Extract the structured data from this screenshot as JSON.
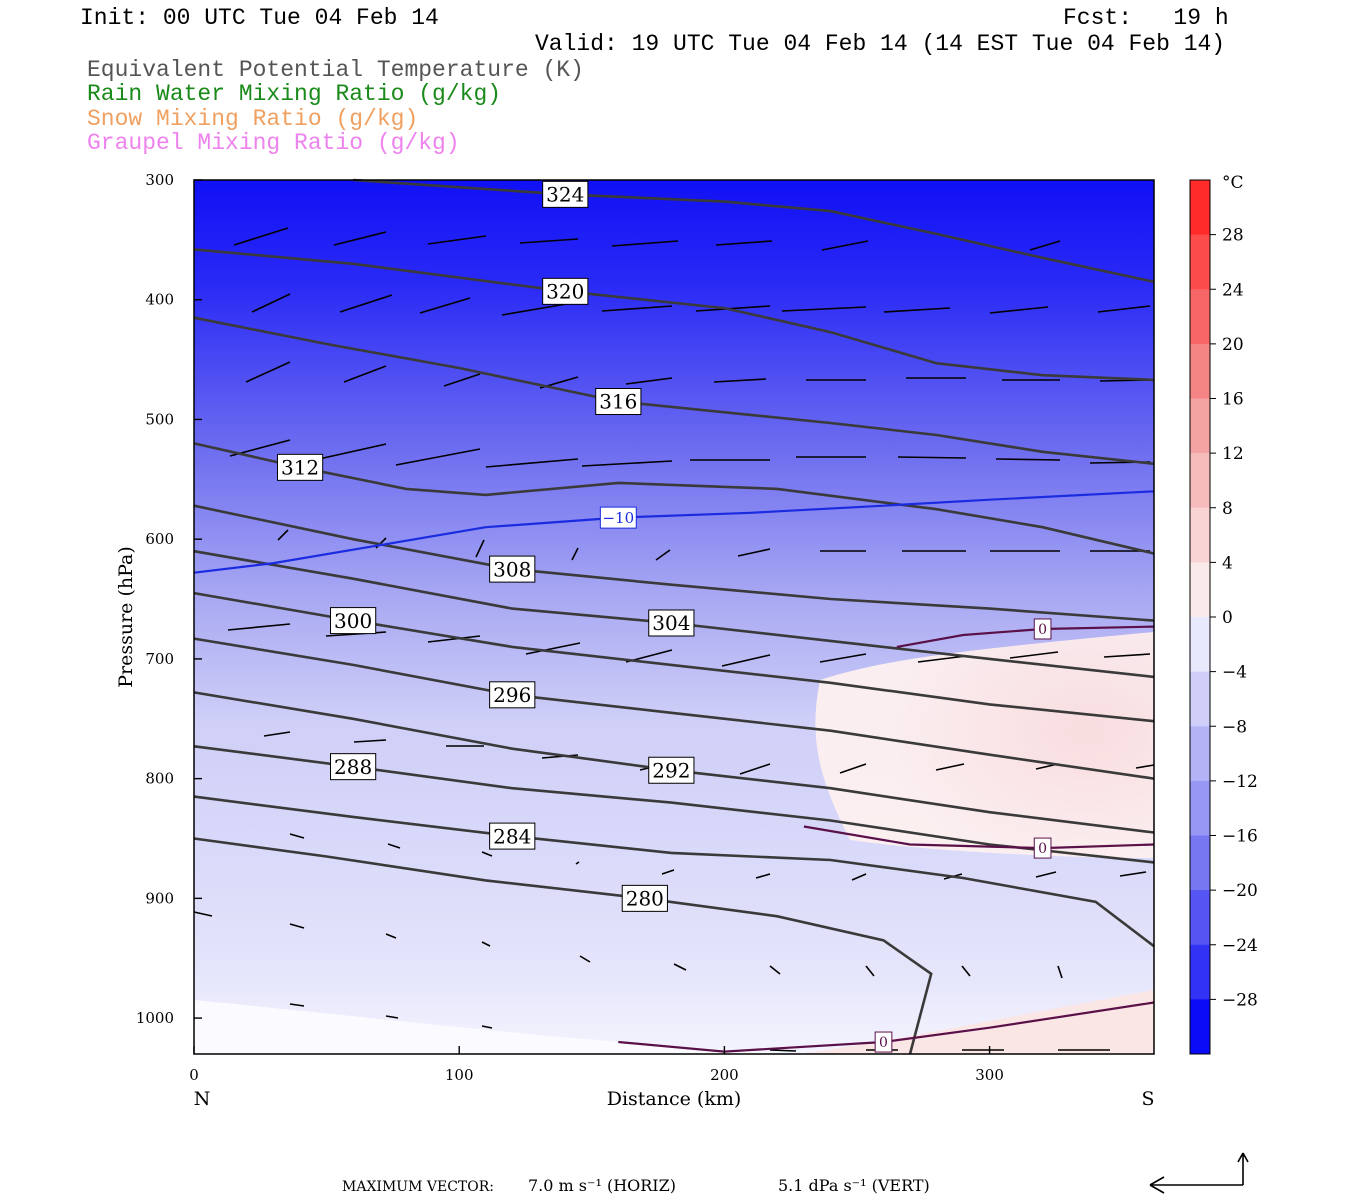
{
  "header": {
    "init": "Init: 00 UTC Tue 04 Feb 14",
    "fcst": "Fcst:   19 h",
    "valid": "Valid: 19 UTC Tue 04 Feb 14 (14 EST Tue 04 Feb 14)"
  },
  "legend": [
    {
      "label": "Equivalent Potential Temperature (K)",
      "color": "#555555"
    },
    {
      "label": "Rain Water Mixing Ratio (g/kg)",
      "color": "#1a8a1a"
    },
    {
      "label": "Snow Mixing Ratio (g/kg)",
      "color": "#f0a060"
    },
    {
      "label": "Graupel Mixing Ratio (g/kg)",
      "color": "#ee82ee"
    }
  ],
  "footer": {
    "max_vector_label": "MAXIMUM VECTOR:",
    "horiz": "7.0 m s⁻¹ (HORIZ)",
    "vert": "5.1 dPa s⁻¹ (VERT)"
  },
  "chart_data": {
    "type": "contour",
    "xlabel": "Distance (km)",
    "ylabel": "Pressure (hPa)",
    "x_ticks": [
      0,
      100,
      200,
      300
    ],
    "y_ticks": [
      300,
      400,
      500,
      600,
      700,
      800,
      900,
      1000
    ],
    "xlim": [
      0,
      362
    ],
    "ylim": [
      300,
      1030
    ],
    "x_end_labels": {
      "left": "N",
      "right": "S"
    },
    "colorbar": {
      "unit": "°C",
      "ticks": [
        "28",
        "24",
        "20",
        "16",
        "12",
        "8",
        "4",
        "0",
        "−4",
        "−8",
        "−12",
        "−16",
        "−20",
        "−24",
        "−28"
      ]
    },
    "theta_e_contours": [
      {
        "label": "324",
        "points": [
          [
            60,
            300
          ],
          [
            140,
            312
          ],
          [
            200,
            318
          ],
          [
            240,
            326
          ],
          [
            280,
            345
          ],
          [
            320,
            365
          ],
          [
            362,
            385
          ]
        ]
      },
      {
        "label": "320",
        "points": [
          [
            0,
            358
          ],
          [
            60,
            370
          ],
          [
            140,
            393
          ],
          [
            200,
            407
          ],
          [
            240,
            427
          ],
          [
            280,
            453
          ],
          [
            320,
            463
          ],
          [
            362,
            467
          ]
        ]
      },
      {
        "label": "316",
        "points": [
          [
            0,
            415
          ],
          [
            50,
            437
          ],
          [
            100,
            457
          ],
          [
            160,
            485
          ],
          [
            240,
            503
          ],
          [
            280,
            513
          ],
          [
            320,
            527
          ],
          [
            362,
            537
          ]
        ]
      },
      {
        "label": "312",
        "points": [
          [
            0,
            520
          ],
          [
            40,
            540
          ],
          [
            80,
            558
          ],
          [
            110,
            563
          ],
          [
            160,
            553
          ],
          [
            220,
            558
          ],
          [
            280,
            575
          ],
          [
            320,
            590
          ],
          [
            362,
            612
          ]
        ]
      },
      {
        "label": "308",
        "points": [
          [
            0,
            572
          ],
          [
            60,
            600
          ],
          [
            120,
            625
          ],
          [
            180,
            638
          ],
          [
            240,
            650
          ],
          [
            300,
            658
          ],
          [
            362,
            668
          ]
        ]
      },
      {
        "label": "304",
        "points": [
          [
            0,
            610
          ],
          [
            60,
            633
          ],
          [
            120,
            658
          ],
          [
            180,
            670
          ],
          [
            240,
            685
          ],
          [
            300,
            700
          ],
          [
            362,
            715
          ]
        ]
      },
      {
        "label": "300",
        "points": [
          [
            0,
            645
          ],
          [
            60,
            668
          ],
          [
            120,
            690
          ],
          [
            180,
            705
          ],
          [
            240,
            720
          ],
          [
            300,
            738
          ],
          [
            362,
            752
          ]
        ]
      },
      {
        "label": "296",
        "points": [
          [
            0,
            683
          ],
          [
            60,
            705
          ],
          [
            120,
            730
          ],
          [
            180,
            745
          ],
          [
            240,
            760
          ],
          [
            300,
            780
          ],
          [
            362,
            800
          ]
        ]
      },
      {
        "label": "292",
        "points": [
          [
            0,
            728
          ],
          [
            60,
            750
          ],
          [
            120,
            775
          ],
          [
            180,
            793
          ],
          [
            240,
            808
          ],
          [
            300,
            828
          ],
          [
            362,
            845
          ]
        ]
      },
      {
        "label": "288",
        "points": [
          [
            0,
            773
          ],
          [
            60,
            790
          ],
          [
            120,
            808
          ],
          [
            180,
            820
          ],
          [
            240,
            835
          ],
          [
            300,
            855
          ],
          [
            362,
            870
          ]
        ]
      },
      {
        "label": "284",
        "points": [
          [
            0,
            815
          ],
          [
            60,
            832
          ],
          [
            120,
            848
          ],
          [
            180,
            862
          ],
          [
            240,
            868
          ],
          [
            290,
            883
          ],
          [
            340,
            903
          ],
          [
            362,
            940
          ]
        ]
      },
      {
        "label": "280",
        "points": [
          [
            0,
            850
          ],
          [
            50,
            865
          ],
          [
            110,
            885
          ],
          [
            170,
            900
          ],
          [
            220,
            915
          ],
          [
            260,
            935
          ],
          [
            278,
            963
          ],
          [
            270,
            1030
          ]
        ]
      }
    ],
    "temperature_contours": [
      {
        "label": "−10",
        "points": [
          [
            0,
            628
          ],
          [
            30,
            620
          ],
          [
            70,
            605
          ],
          [
            110,
            590
          ],
          [
            160,
            582
          ],
          [
            210,
            578
          ],
          [
            260,
            572
          ],
          [
            300,
            567
          ],
          [
            362,
            560
          ]
        ]
      },
      {
        "label": "0",
        "points": [
          [
            265,
            690
          ],
          [
            290,
            680
          ],
          [
            320,
            675
          ],
          [
            362,
            673
          ]
        ]
      },
      {
        "label": "0",
        "points": [
          [
            230,
            840
          ],
          [
            270,
            855
          ],
          [
            320,
            858
          ],
          [
            362,
            855
          ]
        ]
      },
      {
        "label": "0",
        "points": [
          [
            160,
            1020
          ],
          [
            200,
            1028
          ],
          [
            260,
            1020
          ],
          [
            300,
            1008
          ],
          [
            362,
            987
          ]
        ]
      }
    ]
  }
}
